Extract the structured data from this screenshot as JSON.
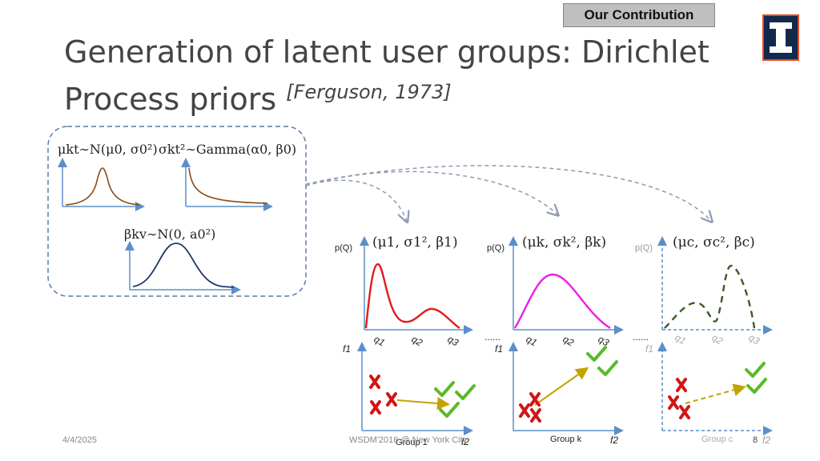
{
  "header": {
    "badge": "Our Contribution",
    "title_main": "Generation of latent user groups: Dirichlet Process priors",
    "title_cite": "[Ferguson, 1973]"
  },
  "priors": {
    "mu": "μkt∼N(μ0, σ0²)",
    "sigma": "σkt²∼Gamma(α0, β0)",
    "beta": "βkv∼N(0, a0²)"
  },
  "groups": [
    {
      "params": "(μ1, σ1², β1)",
      "ylabel": "p(Q)",
      "flabel": "f1",
      "xlabel": "f2",
      "name": "Group 1",
      "q": [
        "q1",
        "q2",
        "q3"
      ]
    },
    {
      "params": "(μk, σk², βk)",
      "ylabel": "p(Q)",
      "flabel": "f1",
      "xlabel": "f2",
      "name": "Group k",
      "q": [
        "q1",
        "q2",
        "q3"
      ]
    },
    {
      "params": "(μc, σc², βc)",
      "ylabel": "p(Q)",
      "flabel": "f1",
      "xlabel": "f2",
      "name": "Group c",
      "q": [
        "q1",
        "q2",
        "q3"
      ]
    }
  ],
  "ellipsis": "......",
  "footer": {
    "date": "4/4/2025",
    "venue": "WSDM'2016 @ New York City",
    "page": "8"
  },
  "colors": {
    "group1_curve": "#e21c1c",
    "groupk_curve": "#ee1ee6",
    "groupc_curve": "#3d5a22",
    "arrow": "#c3a300",
    "cross": "#d21414",
    "check": "#5aba2a",
    "axis": "#5b8fc9"
  }
}
